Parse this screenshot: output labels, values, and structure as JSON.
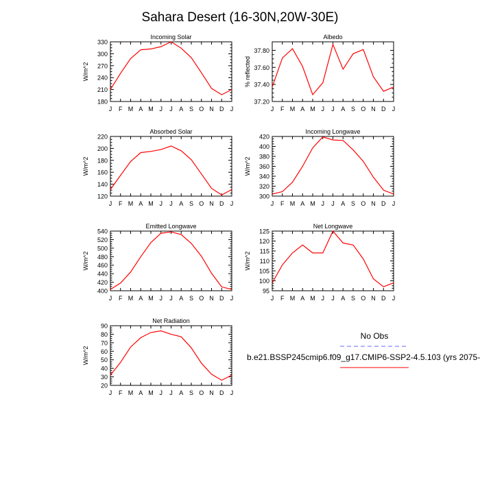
{
  "title": "Sahara Desert (16-30N,20W-30E)",
  "month_labels": [
    "J",
    "F",
    "M",
    "A",
    "M",
    "J",
    "J",
    "A",
    "S",
    "O",
    "N",
    "D",
    "J"
  ],
  "colors": {
    "model": "#ff0000",
    "obs": "#6666ff",
    "axis": "#000000"
  },
  "legend": {
    "obs_label": "No Obs",
    "model_label": "b.e21.BSSP245cmip6.f09_g17.CMIP6-SSP2-4.5.103 (yrs 2075-"
  },
  "chart_data": [
    {
      "type": "line",
      "title": "Incoming Solar",
      "ylabel": "W/m^2",
      "ylim": [
        180,
        330
      ],
      "yticks": [
        180,
        210,
        240,
        270,
        300,
        330
      ],
      "ytick_decimals": 0,
      "series": [
        {
          "values": [
            210,
            251,
            288,
            310,
            312,
            318,
            330,
            314,
            290,
            252,
            213,
            197,
            210
          ]
        }
      ]
    },
    {
      "type": "line",
      "title": "Albedo",
      "ylabel": "% reflected",
      "ylim": [
        37.2,
        37.9
      ],
      "yticks": [
        37.2,
        37.4,
        37.6,
        37.8
      ],
      "ytick_decimals": 2,
      "series": [
        {
          "values": [
            37.37,
            37.71,
            37.82,
            37.61,
            37.28,
            37.42,
            37.87,
            37.58,
            37.76,
            37.81,
            37.49,
            37.32,
            37.37
          ]
        }
      ]
    },
    {
      "type": "line",
      "title": "Absorbed Solar",
      "ylabel": "W/m^2",
      "ylim": [
        120,
        220
      ],
      "yticks": [
        120,
        140,
        160,
        180,
        200,
        220
      ],
      "ytick_decimals": 0,
      "series": [
        {
          "values": [
            131,
            155,
            178,
            193,
            195,
            198,
            204,
            196,
            181,
            157,
            133,
            122,
            131
          ]
        }
      ]
    },
    {
      "type": "line",
      "title": "Incoming Longwave",
      "ylabel": "W/m^2",
      "ylim": [
        300,
        420
      ],
      "yticks": [
        300,
        320,
        340,
        360,
        380,
        400,
        420
      ],
      "ytick_decimals": 0,
      "series": [
        {
          "values": [
            304,
            309,
            328,
            360,
            397,
            419,
            413,
            412,
            393,
            370,
            338,
            312,
            304
          ]
        }
      ]
    },
    {
      "type": "line",
      "title": "Emitted Longwave",
      "ylabel": "W/m^2",
      "ylim": [
        400,
        540
      ],
      "yticks": [
        400,
        420,
        440,
        460,
        480,
        500,
        520,
        540
      ],
      "ytick_decimals": 0,
      "series": [
        {
          "values": [
            403,
            418,
            444,
            480,
            513,
            535,
            538,
            532,
            511,
            481,
            441,
            409,
            403
          ]
        }
      ]
    },
    {
      "type": "line",
      "title": "Net Longwave",
      "ylabel": "W/m^2",
      "ylim": [
        95,
        125
      ],
      "yticks": [
        95,
        100,
        105,
        110,
        115,
        120,
        125
      ],
      "ytick_decimals": 0,
      "series": [
        {
          "values": [
            99,
            108,
            114,
            118,
            114,
            114,
            125,
            119,
            118,
            111,
            101,
            97,
            99
          ]
        }
      ]
    },
    {
      "type": "line",
      "title": "Net Radiation",
      "ylabel": "W/m^2",
      "ylim": [
        20,
        90
      ],
      "yticks": [
        20,
        30,
        40,
        50,
        60,
        70,
        80,
        90
      ],
      "ytick_decimals": 0,
      "series": [
        {
          "values": [
            32,
            47,
            65,
            76,
            82,
            84,
            80,
            77,
            64,
            46,
            33,
            26,
            32
          ]
        }
      ]
    }
  ]
}
